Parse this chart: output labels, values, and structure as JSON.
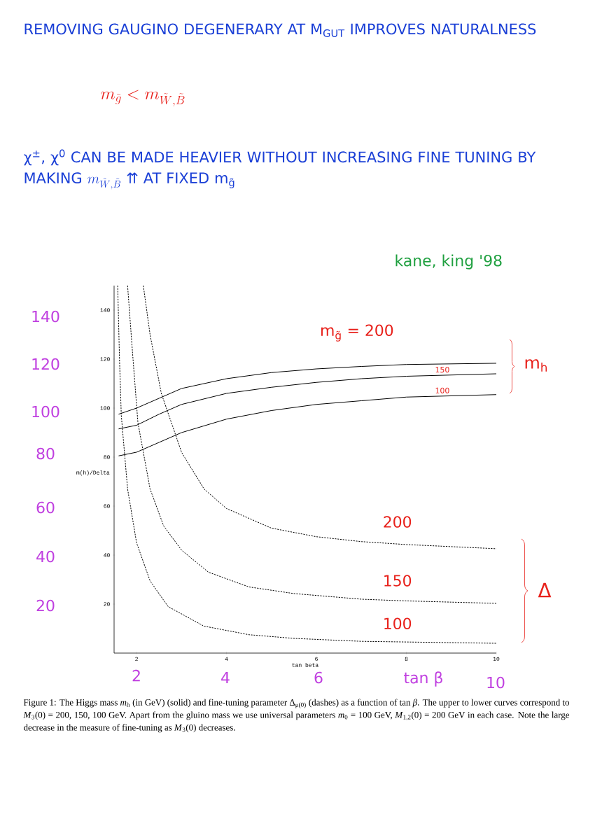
{
  "chart_data": {
    "type": "line",
    "title": "REMOVING GAUGINO DEGENERARY AT M$_{GUT}$ IMPROVES NATURALNESS",
    "subtitle": "m_{\\tilde{g}} < m_{\\tilde{W},\\tilde{B}}",
    "xlabel": "tan beta",
    "ylabel": "m(h)/Delta",
    "xlim": [
      1.5,
      10
    ],
    "ylim": [
      0,
      150
    ],
    "xticks": [
      2,
      4,
      6,
      8,
      10
    ],
    "yticks": [
      20,
      40,
      60,
      80,
      100,
      120,
      140
    ],
    "marker": "none",
    "series": [
      {
        "name": "m$_{g̃}$ = 200",
        "color": "#000000",
        "line_style": "solid",
        "x": [
          1.6,
          2,
          2.5,
          3,
          4,
          5,
          6,
          7,
          8,
          10
        ],
        "values": [
          97.5,
          100,
          104,
          108,
          112,
          114.5,
          116,
          117,
          117.8,
          118.3
        ]
      },
      {
        "name": "150",
        "color": "#000000",
        "line_style": "solid",
        "x": [
          1.6,
          2,
          2.5,
          3,
          4,
          5,
          6,
          7,
          8,
          10
        ],
        "values": [
          91.5,
          93,
          97.5,
          101.5,
          106,
          108.5,
          110.5,
          112,
          113,
          114
        ]
      },
      {
        "name": "100",
        "color": "#000000",
        "line_style": "solid",
        "x": [
          1.6,
          2,
          2.5,
          3,
          4,
          5,
          6,
          7,
          8,
          10
        ],
        "values": [
          80.5,
          82,
          86,
          90,
          95.5,
          99,
          101.5,
          103,
          104.5,
          105.5
        ]
      },
      {
        "name": "200",
        "color": "#000000",
        "line_style": "dashed",
        "x": [
          2.15,
          2.3,
          2.55,
          3,
          3.5,
          4,
          5,
          6,
          7,
          8,
          10
        ],
        "values": [
          150,
          130,
          106,
          82,
          67,
          59,
          51,
          47.5,
          45.5,
          44.3,
          42.6
        ]
      },
      {
        "name": "150",
        "color": "#000000",
        "line_style": "dashed",
        "x": [
          1.8,
          1.9,
          2.03,
          2.3,
          2.6,
          3,
          3.6,
          4.5,
          5.5,
          7,
          8,
          10
        ],
        "values": [
          150,
          125,
          94,
          67,
          52,
          42,
          33,
          27,
          24.3,
          22,
          21.3,
          20.3
        ]
      },
      {
        "name": "100",
        "color": "#000000",
        "line_style": "dashed",
        "x": [
          1.58,
          1.62,
          1.66,
          1.8,
          2,
          2.3,
          2.7,
          3.5,
          4.5,
          5.5,
          7,
          10
        ],
        "values": [
          150,
          120,
          97,
          67,
          45,
          29.5,
          19,
          11,
          7.5,
          6,
          4.8,
          4
        ]
      }
    ],
    "annotations": [
      "χ$^{±}$, χ$^{0}$ CAN BE MADE HEAVIER WITHOUT INCREASING FINE TUNING BY MAKING",
      "kane, king '98",
      "m$_{h}$",
      "Δ",
      "Figure 1: The Higgs mass *m*$_{h}$ (in GeV) (solid) and fine-tuning parameter Δ$_{μ(0)}$ (dashes) as a function of tan *β*. The upper to lower curves correspond to *M*$_{3}$(0) = 200, 150, 100 GeV. Apart from the gluino mass we use universal parameters *m*$_{0}$ = 100 GeV, *M*$_{1,2}$(0) = 200 GeV in each case. Note the large decrease in the measure of fine-tuning as *M*$_{3}$(0) decreases.",
      "140",
      "120",
      "100",
      "80",
      "60",
      "40",
      "20",
      "2",
      "4",
      "6",
      "tan β",
      "10",
      "m_{\\tilde{W},\\tilde{B}}",
      "⇈ AT FIXED m$_{g̃}$"
    ]
  }
}
